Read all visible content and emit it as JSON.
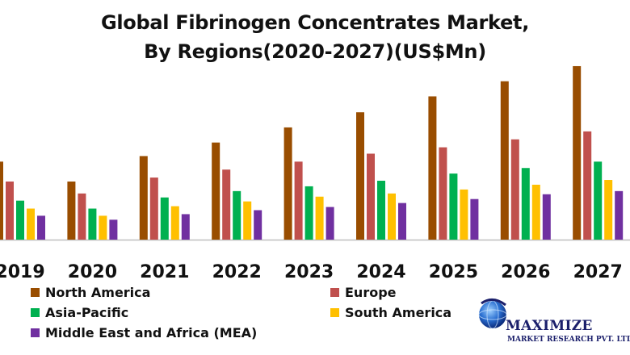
{
  "chart_data": {
    "type": "bar",
    "title": "Global Fibrinogen Concentrates Market,",
    "subtitle": "By Regions(2020-2027)(US$Mn)",
    "categories": [
      "2019",
      "2020",
      "2021",
      "2022",
      "2023",
      "2024",
      "2025",
      "2026",
      "2027"
    ],
    "ylim": [
      0,
      220
    ],
    "grid": false,
    "legend_position": "bottom",
    "series": [
      {
        "name": "North America",
        "color": "#994d00",
        "values": [
          98,
          73,
          105,
          122,
          141,
          160,
          180,
          199,
          218
        ]
      },
      {
        "name": "Europe",
        "color": "#c0504d",
        "values": [
          73,
          58,
          78,
          88,
          98,
          108,
          116,
          126,
          136
        ]
      },
      {
        "name": "Asia-Pacific",
        "color": "#00b050",
        "values": [
          49,
          39,
          53,
          61,
          67,
          74,
          83,
          90,
          98
        ]
      },
      {
        "name": "South America",
        "color": "#ffc000",
        "values": [
          39,
          30,
          42,
          48,
          54,
          58,
          63,
          69,
          75
        ]
      },
      {
        "name": "Middle East and Africa (MEA)",
        "color": "#7030a0",
        "values": [
          30,
          25,
          32,
          37,
          41,
          46,
          51,
          57,
          61
        ]
      }
    ]
  },
  "logo": {
    "name": "MAXIMIZE",
    "subtitle": "MARKET RESEARCH PVT. LTD."
  }
}
